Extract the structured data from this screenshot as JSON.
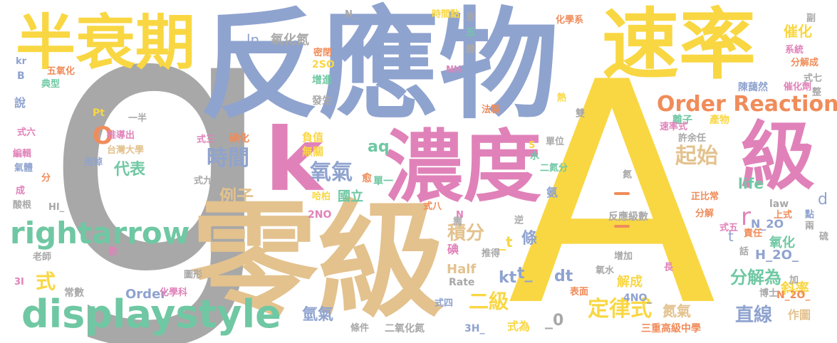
{
  "palette": {
    "gray": "#a8a8a8",
    "blue": "#8fa3cf",
    "yellow": "#f9d743",
    "tan": "#e3c28e",
    "pink": "#e082b9",
    "green": "#6fc8a3",
    "orange": "#f08c5a"
  },
  "words": {
    "g": "g",
    "fanyingwu": "反應物",
    "A": "A",
    "lingji": "零級",
    "nongdu": "濃度",
    "sulv": "速率",
    "banshuaiqi": "半衰期",
    "ji": "級",
    "k": "k",
    "displaystyle": "displaystyle",
    "rightarrow": "rightarrow",
    "order_reactions": "Order Reactions",
    "shijian": "時間",
    "qiqi": "氧氣",
    "qiaoshi": "起始",
    "o": "O",
    "shi_formula": "式",
    "dingliushi": "定律式",
    "erji": "二級",
    "jifen": "積分",
    "lizi": "例子",
    "zhixian": "直線",
    "fenjiewei": "分解為",
    "r": "r",
    "d": "d",
    "ln": "ln",
    "yanghuadan": "氧化氮",
    "cuihua": "催化",
    "aq": "aq",
    "kt": "kt",
    "dt": "dt",
    "t_": "t_",
    "_t": "_t",
    "_0": "_0",
    "t": "t",
    "tiao": "條",
    "daibiao": "代表",
    "guoli": "國立",
    "qingqi": "氫氣",
    "danqi": "氮氣",
    "xielv": "斜率",
    "half": "Half",
    "life": "life",
    "order": "Order",
    "jiecheng": "解成",
    "yanghua": "氧化",
    "h2o": "H_2O_",
    "n2o": "N_2O",
    "n2o_": "N_2O_",
    "no2_4": "4NO_",
    "two_no": "2NO",
    "two_so": "2SO",
    "three_h": "3H_",
    "hi": "HI_",
    "nh": "NH",
    "n_": "N_",
    "n": "N",
    "s": "S",
    "b": "B",
    "kr": "kr",
    "pt": "Pt",
    "rate": "Rate",
    "law": "law",
    "three_i": "3I",
    "dian": "碘",
    "dianhua": "碘化",
    "fuzhi": "負值",
    "wuguan": "無關",
    "danyi": "單一",
    "yu": "愈",
    "habo": "哈柏",
    "fasheng": "發生",
    "zengjin": "增進",
    "mifeng": "密閉",
    "shijiandian": "時間點",
    "huaxuexi": "化學系",
    "xitong": "系統",
    "fenjiecheng": "分解成",
    "cuihuaji": "催化劑",
    "chenyiran": "陳藹然",
    "lizi2": "離子",
    "chanwu": "產物",
    "sulvshi": "速率式",
    "xuzeren": "許余任",
    "danwei": "單位",
    "zhengbichang": "正比常",
    "fanyingjishu": "反應級數",
    "fenjie": "分解",
    "shangshi": "上式",
    "shiwu": "式五",
    "zeren": "責任",
    "zengjia": "增加",
    "biaomian": "表面",
    "yangshui": "氧水",
    "boshi": "博士",
    "zuotu": "作圖",
    "sanchong": "三重高級中學",
    "erhuadan": "二氧化氮",
    "tiaojian": "條件",
    "shiwei": "式為",
    "shisi": "式四",
    "zhi": "指",
    "huaxueke": "化學科",
    "changshu": "常數",
    "tuxing": "圖形",
    "laoshi": "老師",
    "suanqen": "酸根",
    "cheng": "成",
    "fen": "分",
    "qiti": "氣體",
    "bianji": "編輯",
    "shiliu": "式六",
    "taiwan": "台灣大學",
    "yongdiao": "用掉",
    "tuidaochu": "推導出",
    "yiban": "一半",
    "shuo": "說",
    "dianxing": "典型",
    "wuyanghua": "五氧化",
    "shisan": "式三",
    "shijiu": "式九",
    "shiba": "式八",
    "xu": "需",
    "tuide": "推得",
    "ni": "逆",
    "shi2": "時",
    "shu": "數",
    "jiashu": "加",
    "liang": "兩",
    "liu": "硫",
    "hua": "話",
    "dian2": "點",
    "chang": "長",
    "shi7": "式七",
    "zheng": "整",
    "fu": "副",
    "jie": "皆",
    "wu": "五",
    "ti": "體",
    "re": "熱",
    "shuang": "雙",
    "fazhi": "法製",
    "shui": "水",
    "erqifen": "二氮分",
    "dan": "氮",
    "an": "氨"
  }
}
